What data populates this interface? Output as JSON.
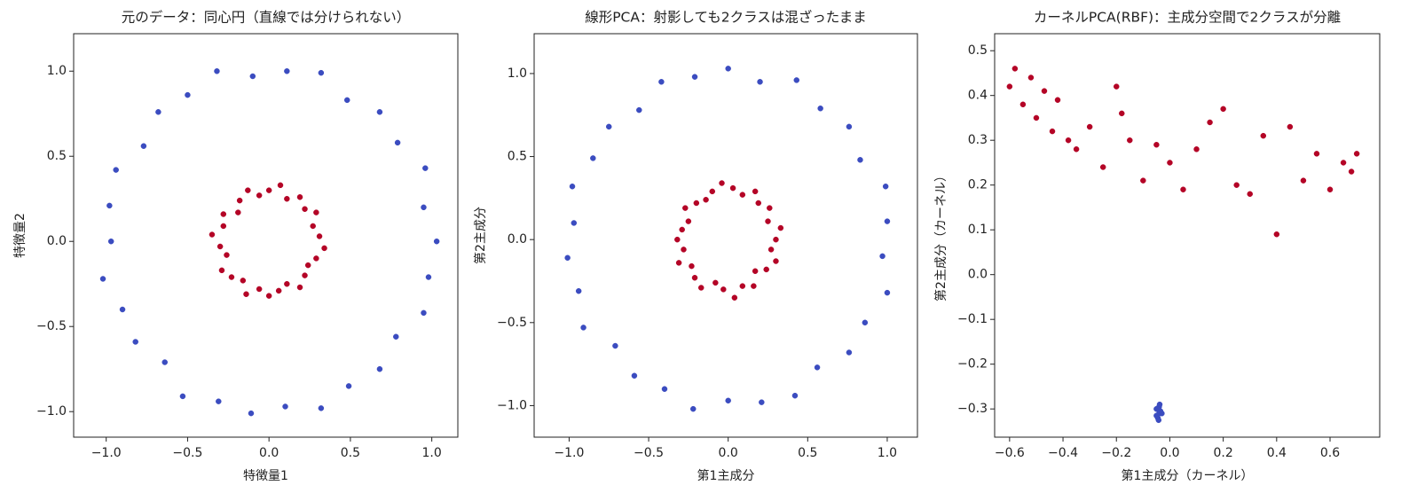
{
  "chart_data": [
    {
      "type": "scatter",
      "title": "元のデータ：同心円（直線では分けられない）",
      "x_label": "特徴量1",
      "y_label": "特徴量2",
      "xlim": [
        -1.2,
        1.16
      ],
      "ylim": [
        -1.15,
        1.22
      ],
      "xticks": [
        {
          "value": -1.0,
          "label": "−1.0"
        },
        {
          "value": -0.5,
          "label": "−0.5"
        },
        {
          "value": 0.0,
          "label": "0.0"
        },
        0.5,
        {
          "value": 1.0,
          "label": "1.0"
        }
      ],
      "yticks": [
        {
          "value": -1.0,
          "label": "−1.0"
        },
        {
          "value": -0.5,
          "label": "−0.5"
        },
        {
          "value": 0.0,
          "label": "0.0"
        },
        0.5,
        {
          "value": 1.0,
          "label": "1.0"
        }
      ],
      "series": [
        {
          "color": "#3b4cc0",
          "x": [
            1.03,
            0.95,
            0.96,
            0.79,
            0.68,
            0.48,
            0.32,
            0.11,
            -0.1,
            -0.32,
            -0.5,
            -0.68,
            -0.77,
            -0.94,
            -0.98,
            -0.97,
            -1.02,
            -0.9,
            -0.82,
            -0.64,
            -0.53,
            -0.31,
            -0.11,
            0.1,
            0.32,
            0.49,
            0.68,
            0.78,
            0.95,
            0.98
          ],
          "values": [
            0,
            0.2,
            0.43,
            0.58,
            0.76,
            0.83,
            0.99,
            1.0,
            0.97,
            1.0,
            0.86,
            0.76,
            0.56,
            0.42,
            0.21,
            0,
            -0.22,
            -0.4,
            -0.59,
            -0.71,
            -0.91,
            -0.94,
            -1.01,
            -0.97,
            -0.98,
            -0.85,
            -0.75,
            -0.56,
            -0.42,
            -0.21
          ]
        },
        {
          "color": "#b40426",
          "x": [
            0.31,
            0.27,
            0.29,
            0.22,
            0.19,
            0.11,
            0.07,
            0,
            -0.06,
            -0.13,
            -0.18,
            -0.19,
            -0.28,
            -0.28,
            -0.35,
            -0.3,
            -0.26,
            -0.29,
            -0.23,
            -0.16,
            -0.14,
            -0.06,
            0,
            0.06,
            0.11,
            0.19,
            0.22,
            0.24,
            0.29,
            0.34
          ],
          "values": [
            0.03,
            0.09,
            0.17,
            0.19,
            0.26,
            0.25,
            0.33,
            0.3,
            0.27,
            0.3,
            0.24,
            0.17,
            0.16,
            0.09,
            0.04,
            -0.03,
            -0.08,
            -0.17,
            -0.21,
            -0.23,
            -0.31,
            -0.28,
            -0.32,
            -0.29,
            -0.25,
            -0.27,
            -0.2,
            -0.14,
            -0.1,
            -0.04
          ]
        }
      ]
    },
    {
      "type": "scatter",
      "title": "線形PCA：射影しても2クラスは混ざったまま",
      "x_label": "第1主成分",
      "y_label": "第2主成分",
      "xlim": [
        -1.22,
        1.19
      ],
      "ylim": [
        -1.19,
        1.24
      ],
      "xticks": [
        {
          "value": -1.0,
          "label": "−1.0"
        },
        {
          "value": -0.5,
          "label": "−0.5"
        },
        {
          "value": 0.0,
          "label": "0.0"
        },
        0.5,
        {
          "value": 1.0,
          "label": "1.0"
        }
      ],
      "yticks": [
        {
          "value": -1.0,
          "label": "−1.0"
        },
        {
          "value": -0.5,
          "label": "−0.5"
        },
        {
          "value": 0.0,
          "label": "0.0"
        },
        0.5,
        {
          "value": 1.0,
          "label": "1.0"
        }
      ],
      "series": [
        {
          "color": "#3b4cc0",
          "x": [
            0,
            0.2,
            0.43,
            0.58,
            0.76,
            0.83,
            0.99,
            1.0,
            0.97,
            1.0,
            0.86,
            0.76,
            0.56,
            0.42,
            0.21,
            0,
            -0.22,
            -0.4,
            -0.59,
            -0.71,
            -0.91,
            -0.94,
            -1.01,
            -0.97,
            -0.98,
            -0.85,
            -0.75,
            -0.56,
            -0.42,
            -0.21
          ],
          "values": [
            1.03,
            0.95,
            0.96,
            0.79,
            0.68,
            0.48,
            0.32,
            0.11,
            -0.1,
            -0.32,
            -0.5,
            -0.68,
            -0.77,
            -0.94,
            -0.98,
            -0.97,
            -1.02,
            -0.9,
            -0.82,
            -0.64,
            -0.53,
            -0.31,
            -0.11,
            0.1,
            0.32,
            0.49,
            0.68,
            0.78,
            0.95,
            0.98
          ]
        },
        {
          "color": "#b40426",
          "x": [
            0.03,
            0.09,
            0.17,
            0.19,
            0.26,
            0.25,
            0.33,
            0.3,
            0.27,
            0.3,
            0.24,
            0.17,
            0.16,
            0.09,
            0.04,
            -0.03,
            -0.08,
            -0.17,
            -0.21,
            -0.23,
            -0.31,
            -0.28,
            -0.32,
            -0.29,
            -0.25,
            -0.27,
            -0.2,
            -0.14,
            -0.1,
            -0.04
          ],
          "values": [
            0.31,
            0.27,
            0.29,
            0.22,
            0.19,
            0.11,
            0.07,
            0,
            -0.06,
            -0.13,
            -0.18,
            -0.19,
            -0.28,
            -0.28,
            -0.35,
            -0.3,
            -0.26,
            -0.29,
            -0.23,
            -0.16,
            -0.14,
            -0.06,
            0,
            0.06,
            0.11,
            0.19,
            0.22,
            0.24,
            0.29,
            0.34
          ]
        }
      ]
    },
    {
      "type": "scatter",
      "title": "カーネルPCA(RBF)：主成分空間で2クラスが分離",
      "x_label": "第1主成分（カーネル）",
      "y_label": "第2主成分（カーネル）",
      "xlim": [
        -0.656,
        0.786
      ],
      "ylim": [
        -0.363,
        0.538
      ],
      "xticks": [
        {
          "value": -0.6,
          "label": "−0.6"
        },
        {
          "value": -0.4,
          "label": "−0.4"
        },
        {
          "value": -0.2,
          "label": "−0.2"
        },
        {
          "value": 0.0,
          "label": "0.0"
        },
        0.2,
        0.4,
        0.6
      ],
      "yticks": [
        {
          "value": -0.3,
          "label": "−0.3"
        },
        {
          "value": -0.2,
          "label": "−0.2"
        },
        {
          "value": -0.1,
          "label": "−0.1"
        },
        {
          "value": 0.0,
          "label": "0.0"
        },
        0.1,
        0.2,
        0.3,
        0.4,
        0.5
      ],
      "series": [
        {
          "color": "#b40426",
          "x": [
            -0.6,
            -0.58,
            -0.55,
            -0.52,
            -0.5,
            -0.47,
            -0.44,
            -0.42,
            -0.38,
            -0.35,
            -0.3,
            -0.25,
            -0.2,
            -0.18,
            -0.15,
            -0.1,
            -0.05,
            0,
            0.05,
            0.1,
            0.15,
            0.2,
            0.25,
            0.3,
            0.35,
            0.4,
            0.45,
            0.5,
            0.55,
            0.6,
            0.65,
            0.68,
            0.7
          ],
          "values": [
            0.42,
            0.46,
            0.38,
            0.44,
            0.35,
            0.41,
            0.32,
            0.39,
            0.3,
            0.28,
            0.33,
            0.24,
            0.42,
            0.36,
            0.3,
            0.21,
            0.29,
            0.25,
            0.19,
            0.28,
            0.34,
            0.37,
            0.2,
            0.18,
            0.31,
            0.09,
            0.33,
            0.21,
            0.27,
            0.19,
            0.25,
            0.23,
            0.27
          ]
        },
        {
          "color": "#3b4cc0",
          "x": [
            -0.05,
            -0.04,
            -0.045,
            -0.035,
            -0.04,
            -0.05,
            -0.03,
            -0.042,
            -0.038,
            -0.048
          ],
          "values": [
            -0.3,
            -0.31,
            -0.32,
            -0.305,
            -0.295,
            -0.315,
            -0.31,
            -0.325,
            -0.29,
            -0.3
          ]
        }
      ]
    }
  ]
}
